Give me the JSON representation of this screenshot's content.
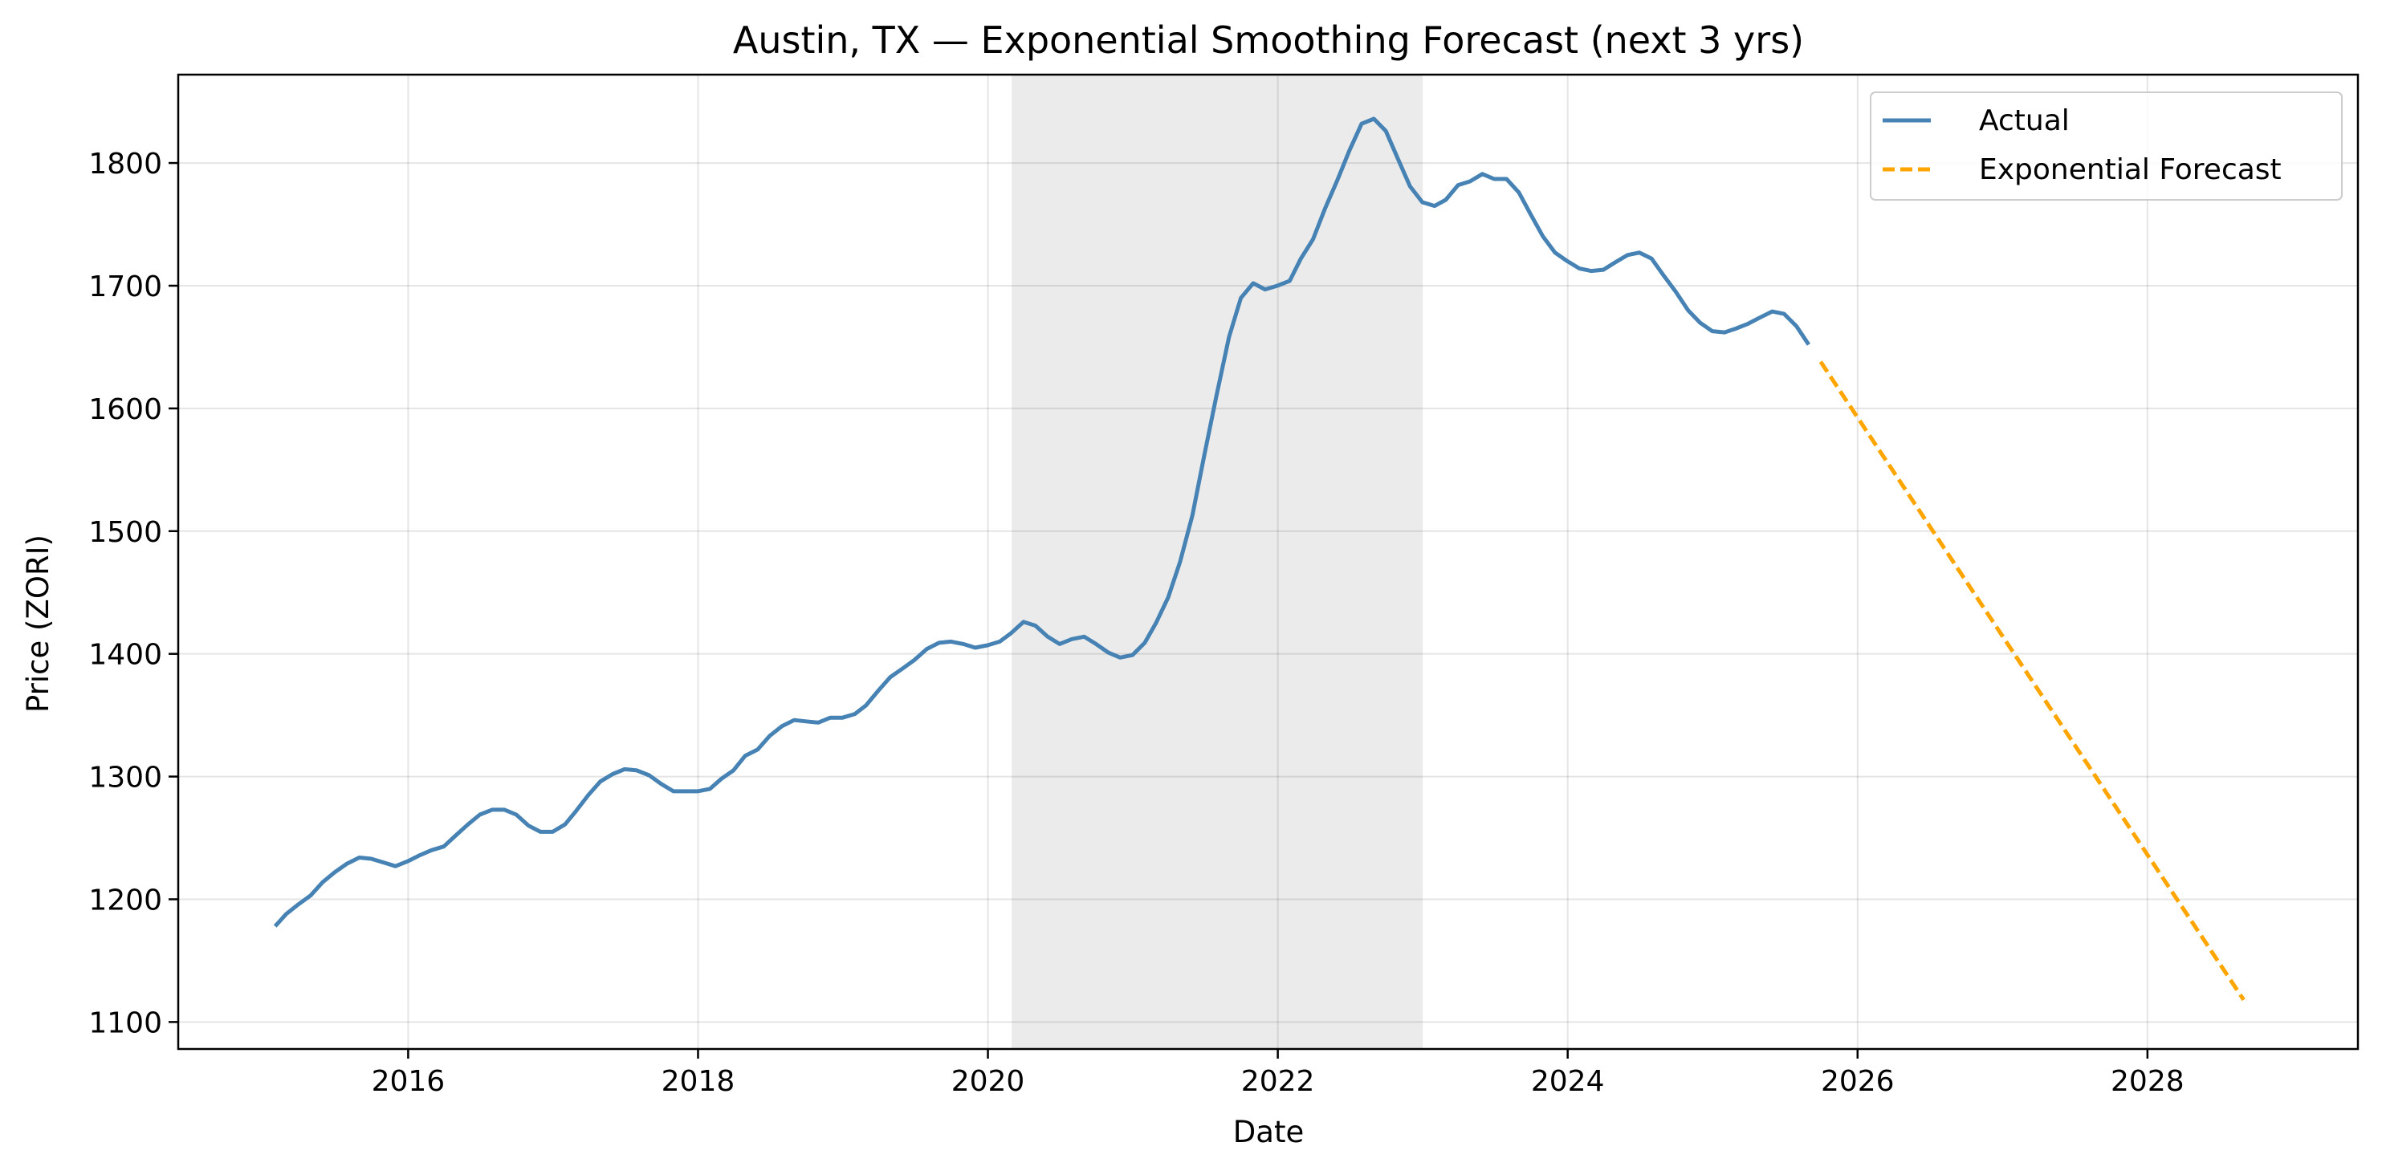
{
  "chart_data": {
    "type": "line",
    "title": "Austin, TX — Exponential Smoothing Forecast (next 3 yrs)",
    "xlabel": "Date",
    "ylabel": "Price (ZORI)",
    "xlim": [
      "2014-06-01",
      "2029-06-15"
    ],
    "ylim": [
      1078,
      1872
    ],
    "x_ticks": [
      "2016",
      "2018",
      "2020",
      "2022",
      "2024",
      "2026",
      "2028"
    ],
    "y_ticks": [
      1100,
      1200,
      1300,
      1400,
      1500,
      1600,
      1700,
      1800
    ],
    "grid": true,
    "legend_position": "top-right",
    "shaded_region": {
      "start": "2020-03-01",
      "end": "2023-01-01",
      "color": "#ebebeb"
    },
    "series": [
      {
        "name": "Actual",
        "color": "#4682b4",
        "style": "solid",
        "points": [
          [
            "2015-01-31",
            1178
          ],
          [
            "2015-02-28",
            1188
          ],
          [
            "2015-03-31",
            1196
          ],
          [
            "2015-04-30",
            1203
          ],
          [
            "2015-05-31",
            1214
          ],
          [
            "2015-06-30",
            1222
          ],
          [
            "2015-07-31",
            1229
          ],
          [
            "2015-08-31",
            1234
          ],
          [
            "2015-09-30",
            1233
          ],
          [
            "2015-10-31",
            1230
          ],
          [
            "2015-11-30",
            1227
          ],
          [
            "2015-12-31",
            1231
          ],
          [
            "2016-01-31",
            1236
          ],
          [
            "2016-02-29",
            1240
          ],
          [
            "2016-03-31",
            1243
          ],
          [
            "2016-04-30",
            1252
          ],
          [
            "2016-05-31",
            1261
          ],
          [
            "2016-06-30",
            1269
          ],
          [
            "2016-07-31",
            1273
          ],
          [
            "2016-08-31",
            1273
          ],
          [
            "2016-09-30",
            1269
          ],
          [
            "2016-10-31",
            1260
          ],
          [
            "2016-11-30",
            1255
          ],
          [
            "2016-12-31",
            1255
          ],
          [
            "2017-01-31",
            1261
          ],
          [
            "2017-02-28",
            1272
          ],
          [
            "2017-03-31",
            1285
          ],
          [
            "2017-04-30",
            1296
          ],
          [
            "2017-05-31",
            1302
          ],
          [
            "2017-06-30",
            1306
          ],
          [
            "2017-07-31",
            1305
          ],
          [
            "2017-08-31",
            1301
          ],
          [
            "2017-09-30",
            1294
          ],
          [
            "2017-10-31",
            1288
          ],
          [
            "2017-11-30",
            1288
          ],
          [
            "2017-12-31",
            1288
          ],
          [
            "2018-01-31",
            1290
          ],
          [
            "2018-02-28",
            1298
          ],
          [
            "2018-03-31",
            1305
          ],
          [
            "2018-04-30",
            1317
          ],
          [
            "2018-05-31",
            1322
          ],
          [
            "2018-06-30",
            1333
          ],
          [
            "2018-07-31",
            1341
          ],
          [
            "2018-08-31",
            1346
          ],
          [
            "2018-09-30",
            1345
          ],
          [
            "2018-10-31",
            1344
          ],
          [
            "2018-11-30",
            1348
          ],
          [
            "2018-12-31",
            1348
          ],
          [
            "2019-01-31",
            1351
          ],
          [
            "2019-02-28",
            1358
          ],
          [
            "2019-03-31",
            1370
          ],
          [
            "2019-04-30",
            1381
          ],
          [
            "2019-05-31",
            1388
          ],
          [
            "2019-06-30",
            1395
          ],
          [
            "2019-07-31",
            1404
          ],
          [
            "2019-08-31",
            1409
          ],
          [
            "2019-09-30",
            1410
          ],
          [
            "2019-10-31",
            1408
          ],
          [
            "2019-11-30",
            1405
          ],
          [
            "2019-12-31",
            1407
          ],
          [
            "2020-01-31",
            1410
          ],
          [
            "2020-02-29",
            1417
          ],
          [
            "2020-03-31",
            1426
          ],
          [
            "2020-04-30",
            1423
          ],
          [
            "2020-05-31",
            1414
          ],
          [
            "2020-06-30",
            1408
          ],
          [
            "2020-07-31",
            1412
          ],
          [
            "2020-08-31",
            1414
          ],
          [
            "2020-09-30",
            1408
          ],
          [
            "2020-10-31",
            1401
          ],
          [
            "2020-11-30",
            1397
          ],
          [
            "2020-12-31",
            1399
          ],
          [
            "2021-01-31",
            1409
          ],
          [
            "2021-02-28",
            1425
          ],
          [
            "2021-03-31",
            1446
          ],
          [
            "2021-04-30",
            1475
          ],
          [
            "2021-05-31",
            1513
          ],
          [
            "2021-06-30",
            1562
          ],
          [
            "2021-07-31",
            1611
          ],
          [
            "2021-08-31",
            1658
          ],
          [
            "2021-09-30",
            1690
          ],
          [
            "2021-10-31",
            1702
          ],
          [
            "2021-11-30",
            1697
          ],
          [
            "2021-12-31",
            1700
          ],
          [
            "2022-01-31",
            1704
          ],
          [
            "2022-02-28",
            1722
          ],
          [
            "2022-03-31",
            1738
          ],
          [
            "2022-04-30",
            1763
          ],
          [
            "2022-05-31",
            1786
          ],
          [
            "2022-06-30",
            1810
          ],
          [
            "2022-07-31",
            1832
          ],
          [
            "2022-08-31",
            1836
          ],
          [
            "2022-09-30",
            1826
          ],
          [
            "2022-10-31",
            1803
          ],
          [
            "2022-11-30",
            1781
          ],
          [
            "2022-12-31",
            1768
          ],
          [
            "2023-01-31",
            1765
          ],
          [
            "2023-02-28",
            1770
          ],
          [
            "2023-03-31",
            1782
          ],
          [
            "2023-04-30",
            1785
          ],
          [
            "2023-05-31",
            1791
          ],
          [
            "2023-06-30",
            1787
          ],
          [
            "2023-07-31",
            1787
          ],
          [
            "2023-08-31",
            1776
          ],
          [
            "2023-09-30",
            1758
          ],
          [
            "2023-10-31",
            1740
          ],
          [
            "2023-11-30",
            1727
          ],
          [
            "2023-12-31",
            1720
          ],
          [
            "2024-01-31",
            1714
          ],
          [
            "2024-02-29",
            1712
          ],
          [
            "2024-03-31",
            1713
          ],
          [
            "2024-04-30",
            1719
          ],
          [
            "2024-05-31",
            1725
          ],
          [
            "2024-06-30",
            1727
          ],
          [
            "2024-07-31",
            1722
          ],
          [
            "2024-08-31",
            1708
          ],
          [
            "2024-09-30",
            1695
          ],
          [
            "2024-10-31",
            1680
          ],
          [
            "2024-11-30",
            1670
          ],
          [
            "2024-12-31",
            1663
          ],
          [
            "2025-01-31",
            1662
          ],
          [
            "2025-02-28",
            1665
          ],
          [
            "2025-03-31",
            1669
          ],
          [
            "2025-04-30",
            1674
          ],
          [
            "2025-05-31",
            1679
          ],
          [
            "2025-06-30",
            1677
          ],
          [
            "2025-07-31",
            1667
          ],
          [
            "2025-08-31",
            1652
          ]
        ]
      },
      {
        "name": "Exponential Forecast",
        "color": "#ffa500",
        "style": "dashed",
        "points": [
          [
            "2025-09-30",
            1638
          ],
          [
            "2028-08-31",
            1118
          ]
        ]
      }
    ]
  }
}
